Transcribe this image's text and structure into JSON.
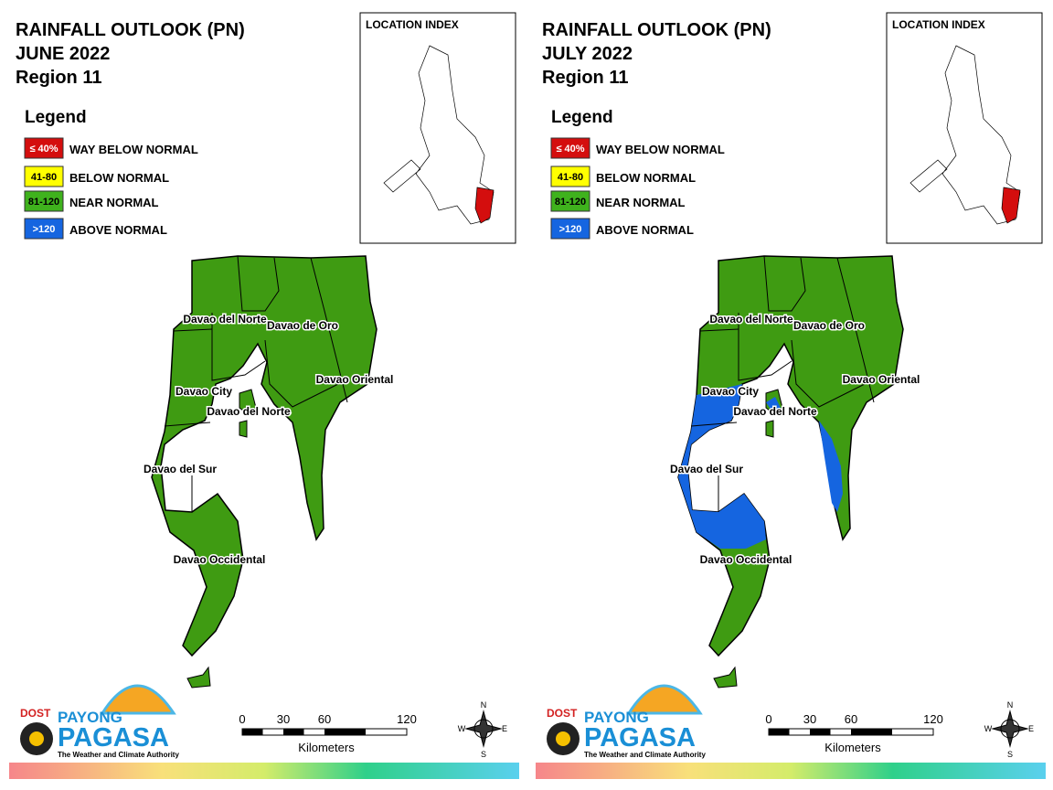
{
  "panels": [
    {
      "title": [
        "RAINFALL OUTLOOK (PN)",
        "JUNE 2022",
        "Region 11"
      ],
      "location_index": "LOCATION INDEX",
      "legend": {
        "title": "Legend",
        "items": [
          {
            "swatch": "≤ 40%",
            "label": "WAY BELOW NORMAL",
            "color": "#d40e0e"
          },
          {
            "swatch": "41-80",
            "label": "BELOW NORMAL",
            "color": "#ffff00"
          },
          {
            "swatch": "81-120",
            "label": "NEAR NORMAL",
            "color": "#3fb21d"
          },
          {
            "swatch": ">120",
            "label": "ABOVE NORMAL",
            "color": "#1565e0"
          }
        ]
      },
      "map_labels": [
        "Davao del Norte",
        "Davao de Oro",
        "Davao Oriental",
        "Davao City",
        "Davao del Norte",
        "Davao del Sur",
        "Davao Occidental"
      ],
      "logo": {
        "agency": "DOST",
        "brand_top": "PAYONG",
        "brand": "PAGASA",
        "tagline": "The Weather and Climate Authority"
      },
      "scale": {
        "ticks": [
          0,
          30,
          60,
          120
        ],
        "unit": "Kilometers"
      },
      "compass": {
        "n": "N",
        "e": "E",
        "s": "S",
        "w": "W"
      }
    },
    {
      "title": [
        "RAINFALL OUTLOOK (PN)",
        "JULY 2022",
        "Region 11"
      ],
      "location_index": "LOCATION INDEX",
      "legend": {
        "title": "Legend",
        "items": [
          {
            "swatch": "≤ 40%",
            "label": "WAY BELOW NORMAL",
            "color": "#d40e0e"
          },
          {
            "swatch": "41-80",
            "label": "BELOW NORMAL",
            "color": "#ffff00"
          },
          {
            "swatch": "81-120",
            "label": "NEAR NORMAL",
            "color": "#3fb21d"
          },
          {
            "swatch": ">120",
            "label": "ABOVE NORMAL",
            "color": "#1565e0"
          }
        ]
      },
      "map_labels": [
        "Davao del Norte",
        "Davao de Oro",
        "Davao Oriental",
        "Davao City",
        "Davao del Norte",
        "Davao del Sur",
        "Davao Occidental"
      ],
      "logo": {
        "agency": "DOST",
        "brand_top": "PAYONG",
        "brand": "PAGASA",
        "tagline": "The Weather and Climate Authority"
      },
      "scale": {
        "ticks": [
          0,
          30,
          60,
          120
        ],
        "unit": "Kilometers"
      },
      "compass": {
        "n": "N",
        "e": "E",
        "s": "S",
        "w": "W"
      }
    }
  ]
}
